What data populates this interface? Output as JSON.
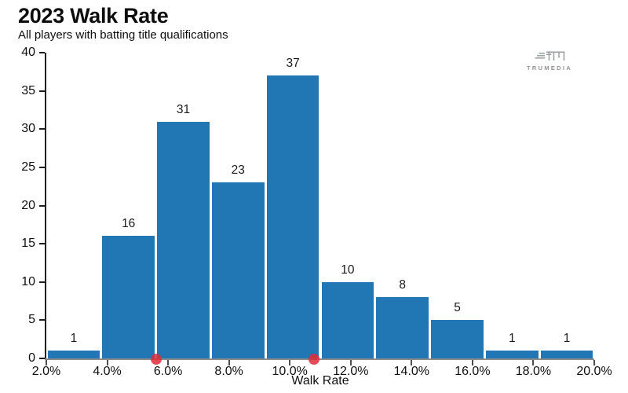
{
  "header": {
    "title": "2023 Walk Rate",
    "subtitle": "All players with batting title qualifications"
  },
  "branding": {
    "logo_icon": "trumedia-logo-icon",
    "logo_text": "TRUMEDIA",
    "logo_color": "#8e9396"
  },
  "chart_data": {
    "type": "bar",
    "subtype": "histogram",
    "title": "2023 Walk Rate",
    "subtitle": "All players with batting title qualifications",
    "xlabel": "Walk Rate",
    "ylabel": "",
    "xlim": [
      2,
      20
    ],
    "ylim": [
      0,
      40
    ],
    "grid": false,
    "legend": "none",
    "bin_edges_pct": [
      2.0,
      3.8,
      5.6,
      7.4,
      9.2,
      11.0,
      12.8,
      14.6,
      16.4,
      18.2,
      20.0
    ],
    "values": [
      1,
      16,
      31,
      23,
      37,
      10,
      8,
      5,
      1,
      1
    ],
    "y_ticks": [
      0,
      5,
      10,
      15,
      20,
      25,
      30,
      35,
      40
    ],
    "x_ticks": [
      {
        "value": 2,
        "label": "2.0%"
      },
      {
        "value": 4,
        "label": "4.0%"
      },
      {
        "value": 6,
        "label": "6.0%"
      },
      {
        "value": 8,
        "label": "8.0%"
      },
      {
        "value": 10,
        "label": "10.0%"
      },
      {
        "value": 12,
        "label": "12.0%"
      },
      {
        "value": 14,
        "label": "14.0%"
      },
      {
        "value": 16,
        "label": "16.0%"
      },
      {
        "value": 18,
        "label": "18.0%"
      },
      {
        "value": 20,
        "label": "20.0%"
      }
    ],
    "markers": [
      {
        "x_pct": 5.6,
        "shape": "dot"
      },
      {
        "x_pct": 10.8,
        "shape": "dot"
      }
    ],
    "colors": {
      "bar": "#2077b4",
      "marker": "#e02b38",
      "x_axis": "#8a8a8a",
      "y_axis": "#1f1f1f",
      "text": "#111111"
    }
  }
}
